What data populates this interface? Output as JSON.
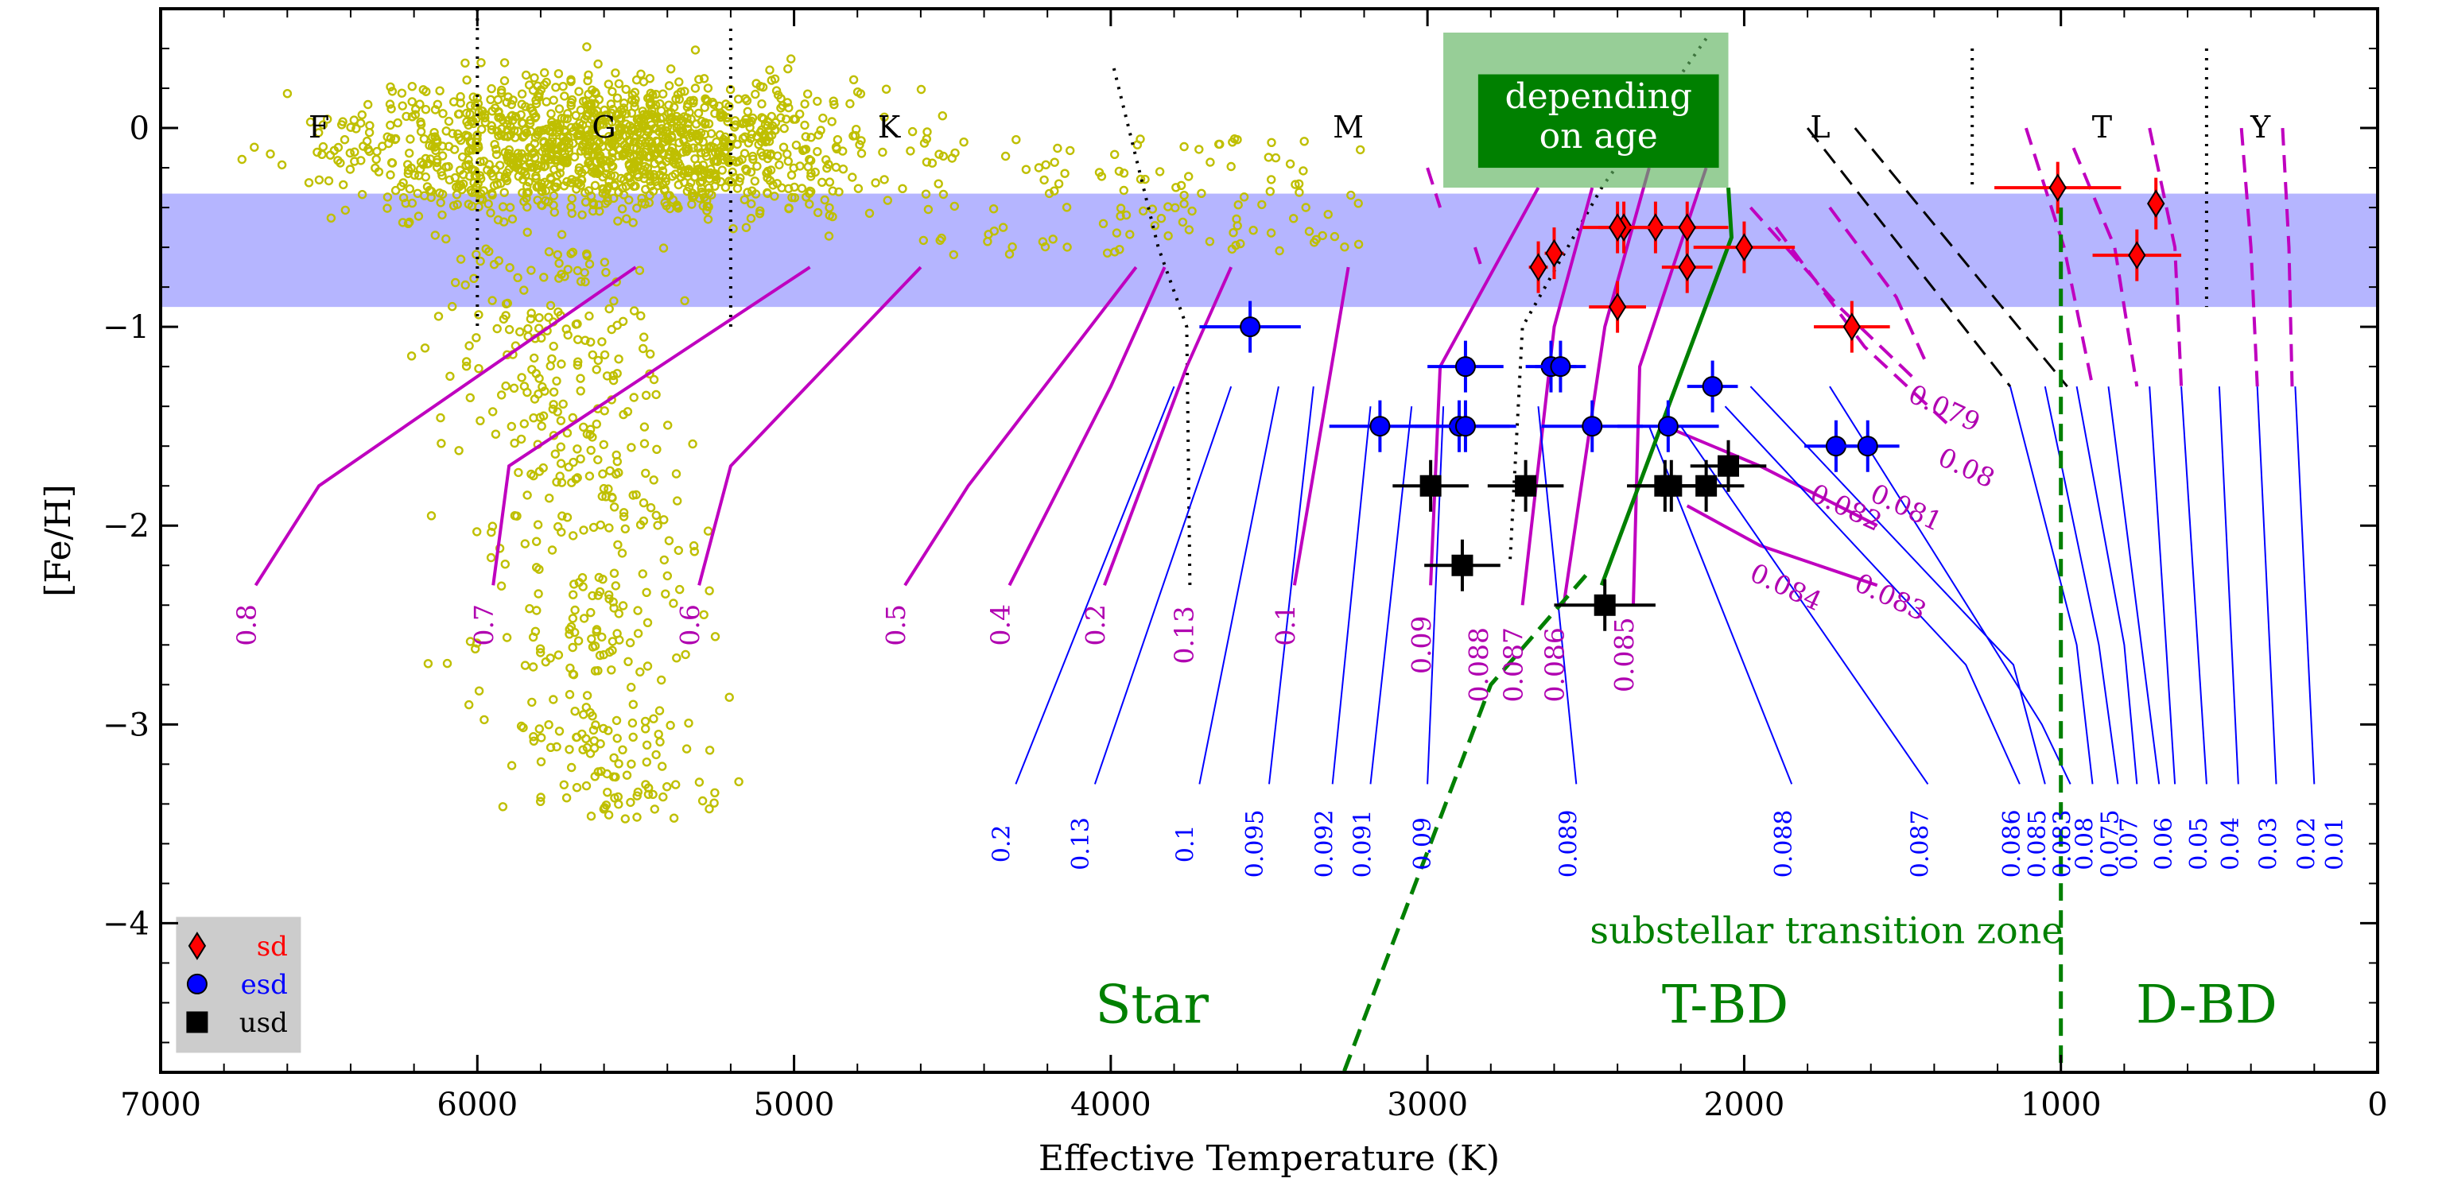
{
  "chart_data": {
    "type": "scatter",
    "xlabel": "Effective Temperature (K)",
    "ylabel": "[Fe/H]",
    "xlim": [
      7000,
      0
    ],
    "ylim": [
      -4.75,
      0.6
    ],
    "x_ticks": [
      7000,
      6000,
      5000,
      4000,
      3000,
      2000,
      1000,
      0
    ],
    "y_ticks": [
      0,
      -1,
      -2,
      -3,
      -4
    ],
    "x_tick_labels": [
      "7000",
      "6000",
      "5000",
      "4000",
      "3000",
      "2000",
      "1000",
      "0"
    ],
    "y_tick_labels": [
      "0",
      "−1",
      "−2",
      "−3",
      "−4"
    ],
    "grid": false,
    "colors": {
      "field_stars": "#bfbf00",
      "sd": "#ff0000",
      "esd": "#0000ff",
      "usd": "#000000",
      "magenta_tracks": "#bf00bf",
      "blue_tracks": "#0000ff",
      "boundary": "#008000",
      "metallicity_band": "#9999ff",
      "age_box": "#5fb35f",
      "age_label_bg": "#008000"
    },
    "spectral_classes": [
      {
        "label": "F",
        "teff": 6500
      },
      {
        "label": "G",
        "teff": 5600
      },
      {
        "label": "K",
        "teff": 4700
      },
      {
        "label": "M",
        "teff": 3250
      },
      {
        "label": "L",
        "teff": 1760
      },
      {
        "label": "T",
        "teff": 870
      },
      {
        "label": "Y",
        "teff": 370
      }
    ],
    "annotations": {
      "age_box_text": [
        "depending",
        "on age"
      ],
      "transition_zone": "substellar transition zone",
      "zones": [
        {
          "label": "Star",
          "teff": 3870,
          "feh": -4.5
        },
        {
          "label": "T-BD",
          "teff": 2060,
          "feh": -4.5
        },
        {
          "label": "D-BD",
          "teff": 540,
          "feh": -4.5
        }
      ]
    },
    "metallicity_band": {
      "feh_range": [
        -0.9,
        -0.33
      ]
    },
    "legend": {
      "position": "lower-left",
      "entries": [
        {
          "label": "sd",
          "marker": "diamond",
          "color": "#ff0000"
        },
        {
          "label": "esd",
          "marker": "circle",
          "color": "#0000ff"
        },
        {
          "label": "usd",
          "marker": "square",
          "color": "#000000"
        }
      ]
    },
    "series": [
      {
        "name": "sd",
        "marker": "diamond",
        "points": [
          [
            1010,
            -0.3,
            200
          ],
          [
            700,
            -0.38,
            0
          ],
          [
            760,
            -0.64,
            140
          ],
          [
            2380,
            -0.5,
            130
          ],
          [
            2280,
            -0.5,
            130
          ],
          [
            2180,
            -0.5,
            130
          ],
          [
            2400,
            -0.5,
            60
          ],
          [
            2000,
            -0.6,
            160
          ],
          [
            2600,
            -0.63,
            30
          ],
          [
            2650,
            -0.7,
            30
          ],
          [
            2180,
            -0.7,
            80
          ],
          [
            2400,
            -0.9,
            90
          ],
          [
            1660,
            -1.0,
            120
          ]
        ]
      },
      {
        "name": "esd",
        "marker": "circle",
        "points": [
          [
            2880,
            -1.2,
            120
          ],
          [
            2610,
            -1.2,
            80
          ],
          [
            2580,
            -1.2,
            80
          ],
          [
            2100,
            -1.3,
            80
          ],
          [
            3150,
            -1.5,
            160
          ],
          [
            2900,
            -1.5,
            160
          ],
          [
            2880,
            -1.5,
            160
          ],
          [
            2480,
            -1.5,
            160
          ],
          [
            2240,
            -1.5,
            160
          ],
          [
            1710,
            -1.6,
            100
          ],
          [
            1610,
            -1.6,
            100
          ],
          [
            3560,
            -1.0,
            160
          ]
        ]
      },
      {
        "name": "usd",
        "marker": "square",
        "points": [
          [
            2990,
            -1.8,
            120
          ],
          [
            2690,
            -1.8,
            120
          ],
          [
            2250,
            -1.8,
            120
          ],
          [
            2230,
            -1.8,
            120
          ],
          [
            2120,
            -1.8,
            120
          ],
          [
            2050,
            -1.7,
            120
          ],
          [
            2890,
            -2.2,
            120
          ],
          [
            2440,
            -2.4,
            160
          ]
        ]
      }
    ],
    "magenta_mass_labels": [
      {
        "text": "0.8",
        "teff": 6700,
        "feh": -2.5
      },
      {
        "text": "0.7",
        "teff": 5950,
        "feh": -2.5
      },
      {
        "text": "0.6",
        "teff": 5300,
        "feh": -2.5
      },
      {
        "text": "0.5",
        "teff": 4650,
        "feh": -2.5
      },
      {
        "text": "0.4",
        "teff": 4320,
        "feh": -2.5
      },
      {
        "text": "0.2",
        "teff": 4020,
        "feh": -2.5
      },
      {
        "text": "0.13",
        "teff": 3740,
        "feh": -2.55
      },
      {
        "text": "0.1",
        "teff": 3420,
        "feh": -2.5
      },
      {
        "text": "0.09",
        "teff": 2990,
        "feh": -2.6
      },
      {
        "text": "0.088",
        "teff": 2810,
        "feh": -2.7
      },
      {
        "text": "0.087",
        "teff": 2700,
        "feh": -2.7
      },
      {
        "text": "0.086",
        "teff": 2570,
        "feh": -2.7
      },
      {
        "text": "0.085",
        "teff": 2350,
        "feh": -2.65
      },
      {
        "text": "0.084",
        "teff": 1880,
        "feh": -2.35
      },
      {
        "text": "0.083",
        "teff": 1550,
        "feh": -2.4
      },
      {
        "text": "0.082",
        "teff": 1690,
        "feh": -1.95
      },
      {
        "text": "0.081",
        "teff": 1500,
        "feh": -1.95
      },
      {
        "text": "0.08",
        "teff": 1310,
        "feh": -1.75
      },
      {
        "text": "0.079",
        "teff": 1380,
        "feh": -1.45
      }
    ],
    "blue_mass_labels": [
      {
        "text": "0.2",
        "teff": 4320
      },
      {
        "text": "0.13",
        "teff": 4070
      },
      {
        "text": "0.1",
        "teff": 3740
      },
      {
        "text": "0.095",
        "teff": 3520
      },
      {
        "text": "0.092",
        "teff": 3300
      },
      {
        "text": "0.091",
        "teff": 3180
      },
      {
        "text": "0.09",
        "teff": 2990
      },
      {
        "text": "0.089",
        "teff": 2530
      },
      {
        "text": "0.088",
        "teff": 1850
      },
      {
        "text": "0.087",
        "teff": 1420
      },
      {
        "text": "0.086",
        "teff": 1130
      },
      {
        "text": "0.085",
        "teff": 1050
      },
      {
        "text": "0.083",
        "teff": 970
      },
      {
        "text": "0.08",
        "teff": 900
      },
      {
        "text": "0.075",
        "teff": 820
      },
      {
        "text": "0.07",
        "teff": 760
      },
      {
        "text": "0.06",
        "teff": 650
      },
      {
        "text": "0.05",
        "teff": 540
      },
      {
        "text": "0.04",
        "teff": 440
      },
      {
        "text": "0.03",
        "teff": 320
      },
      {
        "text": "0.02",
        "teff": 200
      },
      {
        "text": "0.01",
        "teff": 110
      }
    ]
  }
}
